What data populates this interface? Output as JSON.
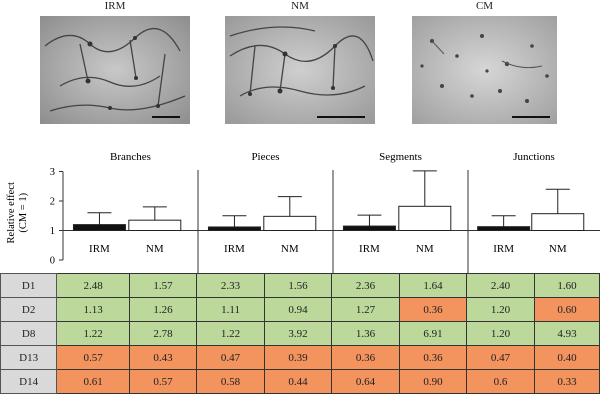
{
  "images": [
    {
      "label": "IRM"
    },
    {
      "label": "NM"
    },
    {
      "label": "CM"
    }
  ],
  "colors": {
    "irm_bar": "#111111",
    "nm_bar": "#ffffff",
    "cell_green": "#bcd89a",
    "cell_orange": "#f3935e",
    "rowhead_gray": "#d9d9d9"
  },
  "chart_data": {
    "type": "bar",
    "ylabel": "Relative effect\n(CM = 1)",
    "ylim": [
      0,
      3
    ],
    "yticks": [
      "0",
      "1",
      "2",
      "3"
    ],
    "groups": [
      {
        "name": "Branches",
        "categories": [
          "IRM",
          "NM"
        ],
        "values": [
          1.2,
          1.35
        ],
        "errors": [
          0.4,
          0.45
        ]
      },
      {
        "name": "Pieces",
        "categories": [
          "IRM",
          "NM"
        ],
        "values": [
          1.12,
          1.48
        ],
        "errors": [
          0.38,
          0.67
        ]
      },
      {
        "name": "Segments",
        "categories": [
          "IRM",
          "NM"
        ],
        "values": [
          1.15,
          1.82
        ],
        "errors": [
          0.37,
          1.2
        ]
      },
      {
        "name": "Junctions",
        "categories": [
          "IRM",
          "NM"
        ],
        "values": [
          1.13,
          1.57
        ],
        "errors": [
          0.37,
          0.83
        ]
      }
    ]
  },
  "table": {
    "rows": [
      {
        "label": "D1",
        "cells": [
          {
            "v": "2.48",
            "c": "green"
          },
          {
            "v": "1.57",
            "c": "green"
          },
          {
            "v": "2.33",
            "c": "green"
          },
          {
            "v": "1.56",
            "c": "green"
          },
          {
            "v": "2.36",
            "c": "green"
          },
          {
            "v": "1.64",
            "c": "green"
          },
          {
            "v": "2.40",
            "c": "green"
          },
          {
            "v": "1.60",
            "c": "green"
          }
        ]
      },
      {
        "label": "D2",
        "cells": [
          {
            "v": "1.13",
            "c": "green"
          },
          {
            "v": "1.26",
            "c": "green"
          },
          {
            "v": "1.11",
            "c": "green"
          },
          {
            "v": "0.94",
            "c": "green"
          },
          {
            "v": "1.27",
            "c": "green"
          },
          {
            "v": "0.36",
            "c": "orange"
          },
          {
            "v": "1.20",
            "c": "green"
          },
          {
            "v": "0.60",
            "c": "orange"
          }
        ]
      },
      {
        "label": "D8",
        "cells": [
          {
            "v": "1.22",
            "c": "green"
          },
          {
            "v": "2.78",
            "c": "green"
          },
          {
            "v": "1.22",
            "c": "green"
          },
          {
            "v": "3.92",
            "c": "green"
          },
          {
            "v": "1.36",
            "c": "green"
          },
          {
            "v": "6.91",
            "c": "green"
          },
          {
            "v": "1.20",
            "c": "green"
          },
          {
            "v": "4.93",
            "c": "green"
          }
        ]
      },
      {
        "label": "D13",
        "cells": [
          {
            "v": "0.57",
            "c": "orange"
          },
          {
            "v": "0.43",
            "c": "orange"
          },
          {
            "v": "0.47",
            "c": "orange"
          },
          {
            "v": "0.39",
            "c": "orange"
          },
          {
            "v": "0.36",
            "c": "orange"
          },
          {
            "v": "0.36",
            "c": "orange"
          },
          {
            "v": "0.47",
            "c": "orange"
          },
          {
            "v": "0.40",
            "c": "orange"
          }
        ]
      },
      {
        "label": "D14",
        "cells": [
          {
            "v": "0.61",
            "c": "orange"
          },
          {
            "v": "0.57",
            "c": "orange"
          },
          {
            "v": "0.58",
            "c": "orange"
          },
          {
            "v": "0.44",
            "c": "orange"
          },
          {
            "v": "0.64",
            "c": "orange"
          },
          {
            "v": "0.90",
            "c": "orange"
          },
          {
            "v": "0.6",
            "c": "orange"
          },
          {
            "v": "0.33",
            "c": "orange"
          }
        ]
      }
    ]
  }
}
